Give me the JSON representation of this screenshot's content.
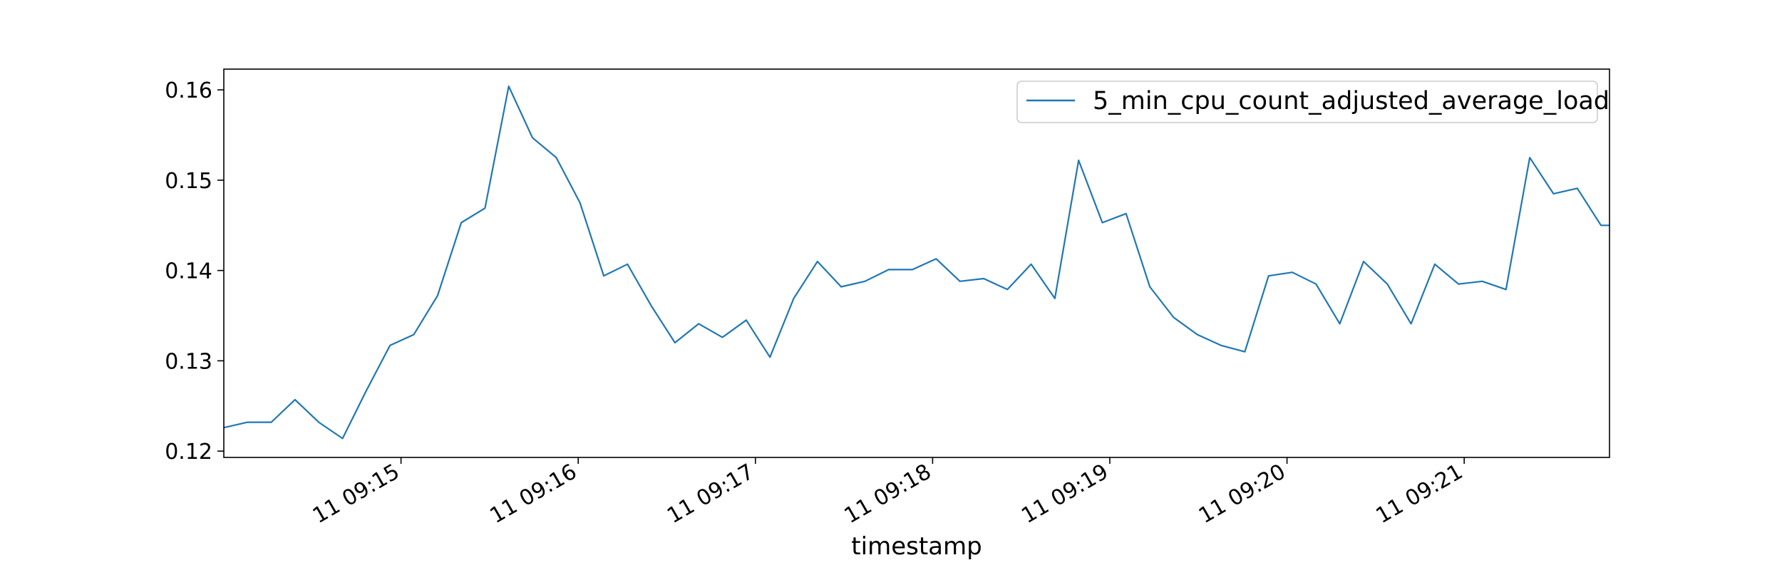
{
  "chart_data": {
    "type": "line",
    "title": "",
    "xlabel": "timestamp",
    "ylabel": "",
    "x_unit": "minutes since 11 09:14",
    "xlim": [
      0.0,
      7.82
    ],
    "ylim": [
      0.1193,
      0.1623
    ],
    "yticks": [
      0.12,
      0.13,
      0.14,
      0.15,
      0.16
    ],
    "ytick_labels": [
      "0.12",
      "0.13",
      "0.14",
      "0.15",
      "0.16"
    ],
    "xticks": [
      1,
      2,
      3,
      4,
      5,
      6,
      7
    ],
    "xtick_labels": [
      "11 09:15",
      "11 09:16",
      "11 09:17",
      "11 09:18",
      "11 09:19",
      "11 09:20",
      "11 09:21"
    ],
    "legend_position": "top-right",
    "series": [
      {
        "name": "5_min_cpu_count_adjusted_average_load",
        "color": "#1f77b4",
        "x": [
          0.0,
          0.134,
          0.268,
          0.402,
          0.536,
          0.67,
          0.804,
          0.938,
          1.072,
          1.206,
          1.34,
          1.474,
          1.608,
          1.742,
          1.876,
          2.01,
          2.144,
          2.278,
          2.412,
          2.546,
          2.68,
          2.814,
          2.948,
          3.082,
          3.216,
          3.35,
          3.484,
          3.618,
          3.752,
          3.886,
          4.02,
          4.154,
          4.288,
          4.422,
          4.556,
          4.69,
          4.824,
          4.958,
          5.092,
          5.226,
          5.36,
          5.494,
          5.628,
          5.762,
          5.896,
          6.03,
          6.164,
          6.298,
          6.432,
          6.566,
          6.7,
          6.834,
          6.968,
          7.102,
          7.236,
          7.37,
          7.504,
          7.638,
          7.772,
          7.82
        ],
        "values": [
          0.1226,
          0.1232,
          0.1232,
          0.1257,
          0.1232,
          0.1214,
          0.1267,
          0.1317,
          0.1329,
          0.1372,
          0.1453,
          0.1469,
          0.1604,
          0.1547,
          0.1525,
          0.1475,
          0.1394,
          0.1407,
          0.1361,
          0.132,
          0.1341,
          0.1326,
          0.1345,
          0.1304,
          0.1369,
          0.141,
          0.1382,
          0.1388,
          0.1401,
          0.1401,
          0.1413,
          0.1388,
          0.1391,
          0.1379,
          0.1407,
          0.1369,
          0.1522,
          0.1453,
          0.1463,
          0.1382,
          0.1348,
          0.1329,
          0.1317,
          0.131,
          0.1394,
          0.1398,
          0.1385,
          0.1341,
          0.141,
          0.1385,
          0.1341,
          0.1407,
          0.1385,
          0.1388,
          0.1379,
          0.1525,
          0.1485,
          0.1491,
          0.145,
          0.145
        ]
      }
    ]
  }
}
